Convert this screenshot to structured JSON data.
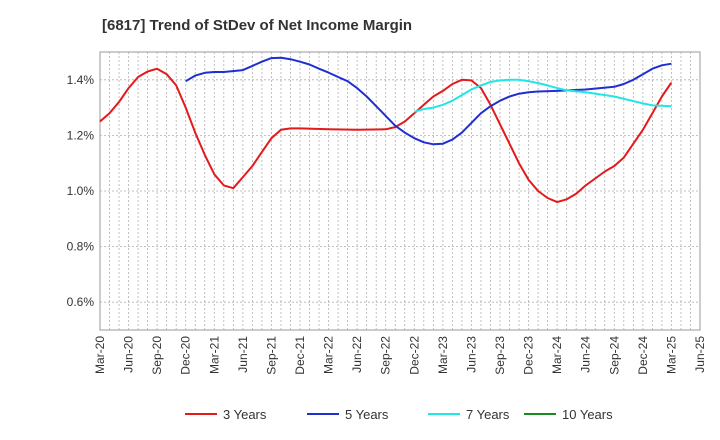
{
  "chart_data": {
    "type": "line",
    "title": "[6817]  Trend of StDev of Net Income Margin",
    "xlabel": "",
    "ylabel": "",
    "ylim": [
      0.5,
      1.5
    ],
    "y_ticks": [
      "0.6%",
      "0.8%",
      "1.0%",
      "1.2%",
      "1.4%"
    ],
    "y_tick_values": [
      0.6,
      0.8,
      1.0,
      1.2,
      1.4
    ],
    "x_tick_labels": [
      "Mar-20",
      "Jun-20",
      "Sep-20",
      "Dec-20",
      "Mar-21",
      "Jun-21",
      "Sep-21",
      "Dec-21",
      "Mar-22",
      "Jun-22",
      "Sep-22",
      "Dec-22",
      "Mar-23",
      "Jun-23",
      "Sep-23",
      "Dec-23",
      "Mar-24",
      "Jun-24",
      "Sep-24",
      "Dec-24",
      "Mar-25",
      "Jun-25"
    ],
    "grid": true,
    "legend_position": "bottom",
    "series": [
      {
        "name": "3 Years",
        "color": "#e31a1c",
        "points": [
          [
            "Mar-20",
            1.25
          ],
          [
            "Apr-20",
            1.28
          ],
          [
            "May-20",
            1.32
          ],
          [
            "Jun-20",
            1.37
          ],
          [
            "Jul-20",
            1.41
          ],
          [
            "Aug-20",
            1.43
          ],
          [
            "Sep-20",
            1.44
          ],
          [
            "Oct-20",
            1.42
          ],
          [
            "Nov-20",
            1.38
          ],
          [
            "Dec-20",
            1.3
          ],
          [
            "Jan-21",
            1.21
          ],
          [
            "Feb-21",
            1.13
          ],
          [
            "Mar-21",
            1.06
          ],
          [
            "Apr-21",
            1.02
          ],
          [
            "May-21",
            1.01
          ],
          [
            "Jun-21",
            1.05
          ],
          [
            "Jul-21",
            1.09
          ],
          [
            "Aug-21",
            1.14
          ],
          [
            "Sep-21",
            1.19
          ],
          [
            "Oct-21",
            1.22
          ],
          [
            "Nov-21",
            1.225
          ],
          [
            "Dec-21",
            1.225
          ],
          [
            "Mar-22",
            1.222
          ],
          [
            "Jun-22",
            1.22
          ],
          [
            "Sep-22",
            1.222
          ],
          [
            "Oct-22",
            1.23
          ],
          [
            "Nov-22",
            1.25
          ],
          [
            "Dec-22",
            1.28
          ],
          [
            "Jan-23",
            1.31
          ],
          [
            "Feb-23",
            1.34
          ],
          [
            "Mar-23",
            1.36
          ],
          [
            "Apr-23",
            1.385
          ],
          [
            "May-23",
            1.4
          ],
          [
            "Jun-23",
            1.398
          ],
          [
            "Jul-23",
            1.37
          ],
          [
            "Aug-23",
            1.31
          ],
          [
            "Sep-23",
            1.24
          ],
          [
            "Oct-23",
            1.17
          ],
          [
            "Nov-23",
            1.1
          ],
          [
            "Dec-23",
            1.04
          ],
          [
            "Jan-24",
            1.0
          ],
          [
            "Feb-24",
            0.975
          ],
          [
            "Mar-24",
            0.96
          ],
          [
            "Apr-24",
            0.97
          ],
          [
            "May-24",
            0.99
          ],
          [
            "Jun-24",
            1.02
          ],
          [
            "Jul-24",
            1.045
          ],
          [
            "Aug-24",
            1.07
          ],
          [
            "Sep-24",
            1.09
          ],
          [
            "Oct-24",
            1.12
          ],
          [
            "Nov-24",
            1.17
          ],
          [
            "Dec-24",
            1.22
          ],
          [
            "Jan-25",
            1.28
          ],
          [
            "Feb-25",
            1.34
          ],
          [
            "Mar-25",
            1.39
          ]
        ]
      },
      {
        "name": "5 Years",
        "color": "#1f2fd1",
        "points": [
          [
            "Dec-20",
            1.395
          ],
          [
            "Jan-21",
            1.415
          ],
          [
            "Feb-21",
            1.425
          ],
          [
            "Mar-21",
            1.428
          ],
          [
            "Apr-21",
            1.428
          ],
          [
            "Jun-21",
            1.435
          ],
          [
            "Jul-21",
            1.45
          ],
          [
            "Aug-21",
            1.465
          ],
          [
            "Sep-21",
            1.478
          ],
          [
            "Oct-21",
            1.479
          ],
          [
            "Nov-21",
            1.474
          ],
          [
            "Dec-21",
            1.465
          ],
          [
            "Jan-22",
            1.455
          ],
          [
            "Feb-22",
            1.44
          ],
          [
            "Mar-22",
            1.426
          ],
          [
            "Apr-22",
            1.41
          ],
          [
            "May-22",
            1.395
          ],
          [
            "Jun-22",
            1.37
          ],
          [
            "Jul-22",
            1.34
          ],
          [
            "Aug-22",
            1.305
          ],
          [
            "Sep-22",
            1.27
          ],
          [
            "Oct-22",
            1.235
          ],
          [
            "Nov-22",
            1.21
          ],
          [
            "Dec-22",
            1.19
          ],
          [
            "Jan-23",
            1.175
          ],
          [
            "Feb-23",
            1.168
          ],
          [
            "Mar-23",
            1.17
          ],
          [
            "Apr-23",
            1.185
          ],
          [
            "May-23",
            1.21
          ],
          [
            "Jun-23",
            1.245
          ],
          [
            "Jul-23",
            1.28
          ],
          [
            "Aug-23",
            1.305
          ],
          [
            "Sep-23",
            1.325
          ],
          [
            "Oct-23",
            1.34
          ],
          [
            "Nov-23",
            1.35
          ],
          [
            "Dec-23",
            1.355
          ],
          [
            "Jan-24",
            1.358
          ],
          [
            "Mar-24",
            1.36
          ],
          [
            "Jun-24",
            1.365
          ],
          [
            "Sep-24",
            1.375
          ],
          [
            "Oct-24",
            1.385
          ],
          [
            "Nov-24",
            1.4
          ],
          [
            "Dec-24",
            1.42
          ],
          [
            "Jan-25",
            1.44
          ],
          [
            "Feb-25",
            1.452
          ],
          [
            "Mar-25",
            1.458
          ]
        ]
      },
      {
        "name": "7 Years",
        "color": "#22e5e5",
        "points": [
          [
            "Dec-22",
            1.285
          ],
          [
            "Jan-23",
            1.295
          ],
          [
            "Feb-23",
            1.3
          ],
          [
            "Mar-23",
            1.31
          ],
          [
            "Apr-23",
            1.325
          ],
          [
            "May-23",
            1.345
          ],
          [
            "Jun-23",
            1.365
          ],
          [
            "Jul-23",
            1.38
          ],
          [
            "Aug-23",
            1.392
          ],
          [
            "Sep-23",
            1.398
          ],
          [
            "Oct-23",
            1.4
          ],
          [
            "Nov-23",
            1.4
          ],
          [
            "Dec-23",
            1.395
          ],
          [
            "Jan-24",
            1.388
          ],
          [
            "Feb-24",
            1.38
          ],
          [
            "Mar-24",
            1.37
          ],
          [
            "Apr-24",
            1.362
          ],
          [
            "Jun-24",
            1.355
          ],
          [
            "Sep-24",
            1.34
          ],
          [
            "Dec-24",
            1.315
          ],
          [
            "Jan-25",
            1.308
          ],
          [
            "Mar-25",
            1.305
          ]
        ]
      },
      {
        "name": "10 Years",
        "color": "#1a8a1a",
        "points": []
      }
    ]
  }
}
